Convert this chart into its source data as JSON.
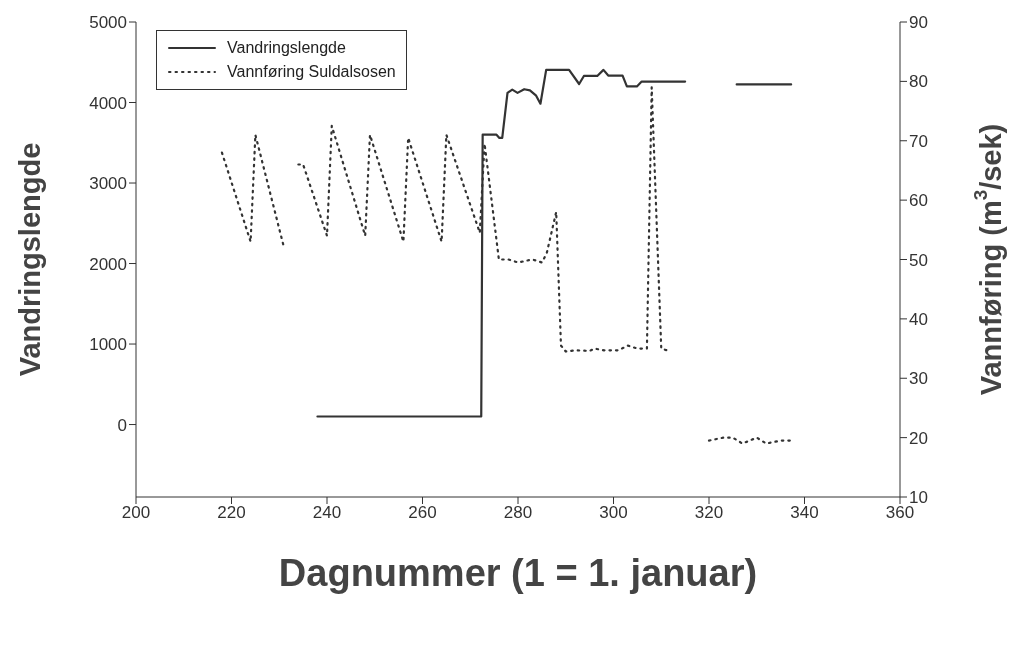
{
  "chart_data": {
    "type": "line",
    "xlabel": "Dagnummer (1 = 1. januar)",
    "ylabel": "Vandringslengde",
    "y2label": "Vannføring (m$^{3}$/sek)",
    "xlim": [
      200,
      360
    ],
    "xticks": [
      200,
      220,
      240,
      260,
      280,
      300,
      320,
      340,
      360
    ],
    "ylim": [
      -900,
      5000
    ],
    "yticks": [
      0,
      1000,
      2000,
      3000,
      4000,
      5000
    ],
    "y2lim": [
      10,
      90
    ],
    "y2ticks": [
      10,
      20,
      30,
      40,
      50,
      60,
      70,
      80,
      90
    ],
    "legend": "top left",
    "grid": false,
    "marker": "none",
    "series": [
      {
        "name": "Vandringslengde",
        "color": "#333333",
        "line_style": "solid",
        "x": [
          238,
          272.3,
          272.6,
          275.5,
          276.1,
          276.7,
          277.8,
          278.8,
          279.9,
          281.3,
          282.5,
          283.8,
          284.7,
          285.9,
          290.7,
          292.8,
          293.8,
          296.6,
          297.9,
          298.9,
          301.9,
          302.8,
          304.9,
          305.9,
          315,
          320,
          325.8,
          337.2
        ],
        "values": [
          100,
          100,
          3600,
          3600,
          3560,
          3560,
          4120,
          4160,
          4120,
          4165,
          4150,
          4085,
          3985,
          4405,
          4405,
          4230,
          4330,
          4330,
          4405,
          4335,
          4335,
          4200,
          4200,
          4260,
          4260,
          null,
          4225,
          4225
        ]
      },
      {
        "name": "Vannføring Suldalsosen",
        "color": "#333333",
        "line_style": "dotted",
        "axis": "y2",
        "x": [
          218,
          224,
          225,
          231,
          232,
          234,
          235,
          240,
          241,
          248,
          249,
          256,
          257,
          264,
          265,
          272,
          273,
          276,
          278,
          280,
          283,
          285,
          286,
          288,
          289,
          290,
          292,
          295,
          296,
          298,
          301,
          303,
          305,
          307,
          308,
          310,
          312,
          316,
          320,
          323,
          325,
          327,
          330,
          332,
          335,
          337
        ],
        "values": [
          68,
          53,
          71,
          52,
          null,
          66,
          66,
          54,
          72.5,
          54,
          71,
          53,
          70.5,
          53,
          71,
          54.5,
          69.5,
          50,
          50,
          49.5,
          50,
          49.5,
          51,
          58,
          35.5,
          34.5,
          34.7,
          34.6,
          35,
          34.7,
          34.7,
          35.5,
          35,
          35,
          79,
          35,
          34.5,
          null,
          19.5,
          20,
          20,
          19,
          20,
          19,
          19.5,
          19.5
        ]
      }
    ]
  }
}
